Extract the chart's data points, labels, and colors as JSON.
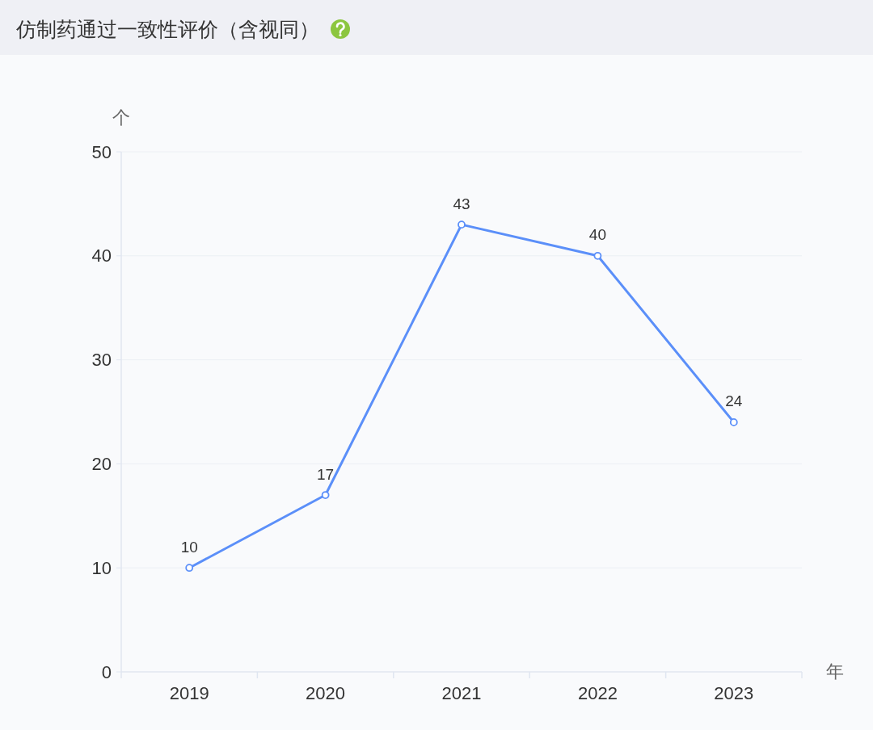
{
  "chart_data": {
    "type": "line",
    "title": "仿制药通过一致性评价（含视同）",
    "ylabel": "个",
    "xlabel": "年",
    "categories": [
      "2019",
      "2020",
      "2021",
      "2022",
      "2023"
    ],
    "series": [
      {
        "color": "#5b8ff9",
        "values": [
          10,
          17,
          43,
          40,
          24
        ]
      }
    ],
    "ylim": [
      0,
      50
    ],
    "yticks": [
      0,
      10,
      20,
      30,
      40,
      50
    ],
    "grid": "y",
    "data_labels": true,
    "marker": "circle"
  }
}
